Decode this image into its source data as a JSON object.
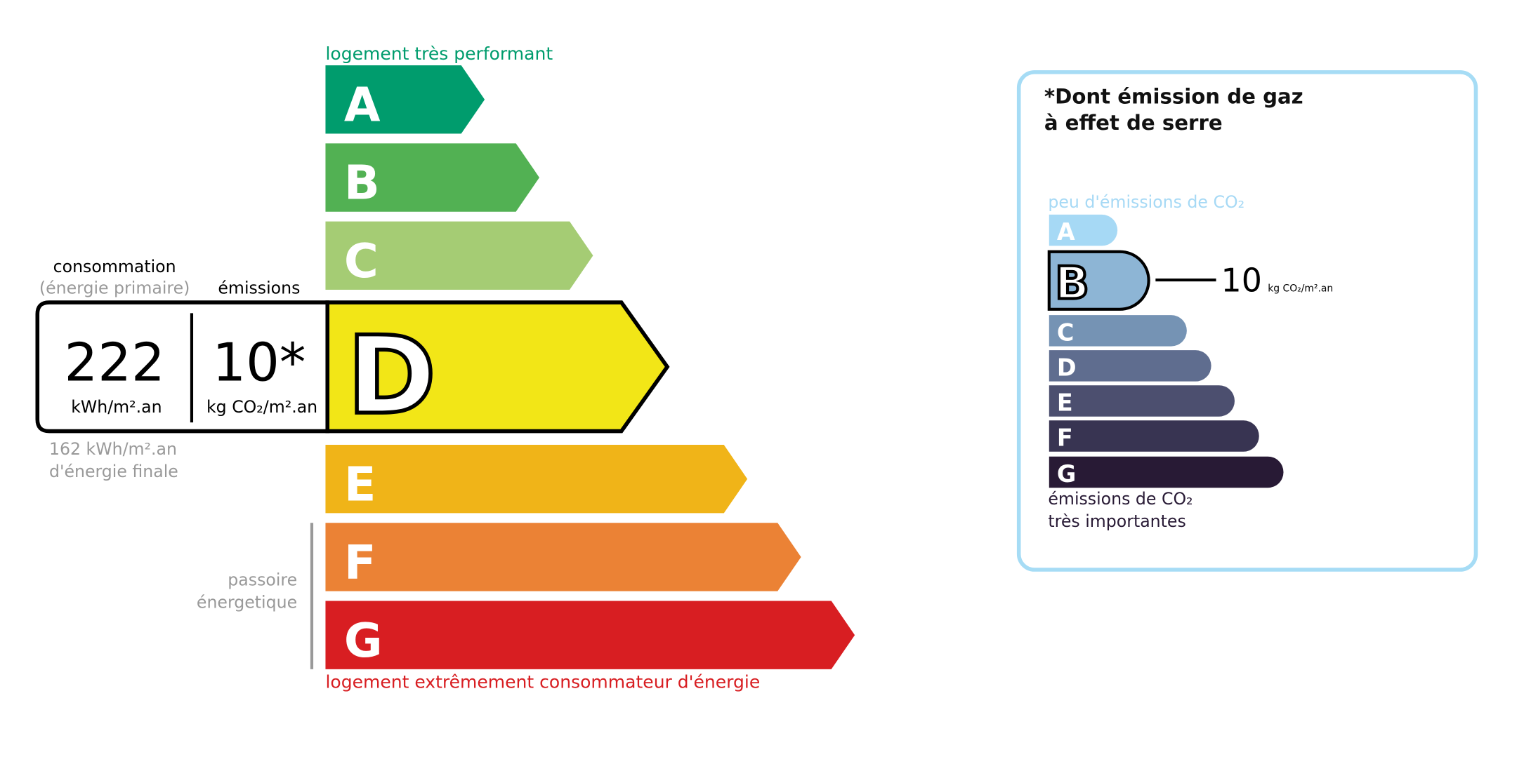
{
  "energy": {
    "top_label": "logement très performant",
    "bottom_label": "logement extrêmement consommateur d'énergie",
    "current_grade": "D",
    "grades": [
      {
        "letter": "A",
        "color": "#009c6d"
      },
      {
        "letter": "B",
        "color": "#52b153"
      },
      {
        "letter": "C",
        "color": "#a5cc74"
      },
      {
        "letter": "D",
        "color": "#f2e617"
      },
      {
        "letter": "E",
        "color": "#f0b418"
      },
      {
        "letter": "F",
        "color": "#eb8235"
      },
      {
        "letter": "G",
        "color": "#d81e22"
      }
    ],
    "consumption_label": "consommation",
    "consumption_sub": "(énergie primaire)",
    "emissions_label": "émissions",
    "consumption_value": "222",
    "consumption_unit": "kWh/m².an",
    "emissions_value": "10*",
    "emissions_unit": "kg CO₂/m².an",
    "final_energy_line1": "162 kWh/m².an",
    "final_energy_line2": "d'énergie finale",
    "passoire_line1": "passoire",
    "passoire_line2": "énergetique"
  },
  "ges": {
    "title_line1": "*Dont émission de gaz",
    "title_line2": "à effet de serre",
    "top_label": "peu d'émissions de CO₂",
    "bottom_line1": "émissions de CO₂",
    "bottom_line2": "très importantes",
    "current_grade": "B",
    "value": "10",
    "unit": "kg CO₂/m².an",
    "border_color": "#a6dcf5",
    "grades": [
      {
        "letter": "A",
        "color": "#a6d9f5"
      },
      {
        "letter": "B",
        "color": "#8db5d5"
      },
      {
        "letter": "C",
        "color": "#7593b4"
      },
      {
        "letter": "D",
        "color": "#5f6d8f"
      },
      {
        "letter": "E",
        "color": "#4c4f6f"
      },
      {
        "letter": "F",
        "color": "#383452"
      },
      {
        "letter": "G",
        "color": "#281a35"
      }
    ]
  },
  "chart_data": [
    {
      "type": "bar",
      "title": "",
      "categories": [
        "A",
        "B",
        "C",
        "D",
        "E",
        "F",
        "G"
      ],
      "highlighted": "D",
      "values": {
        "consumption": 222,
        "emissions": 10,
        "final_energy": 162
      }
    },
    {
      "type": "bar",
      "title": "*Dont émission de gaz à effet de serre",
      "categories": [
        "A",
        "B",
        "C",
        "D",
        "E",
        "F",
        "G"
      ],
      "highlighted": "B",
      "values": {
        "emissions": 10
      }
    }
  ]
}
